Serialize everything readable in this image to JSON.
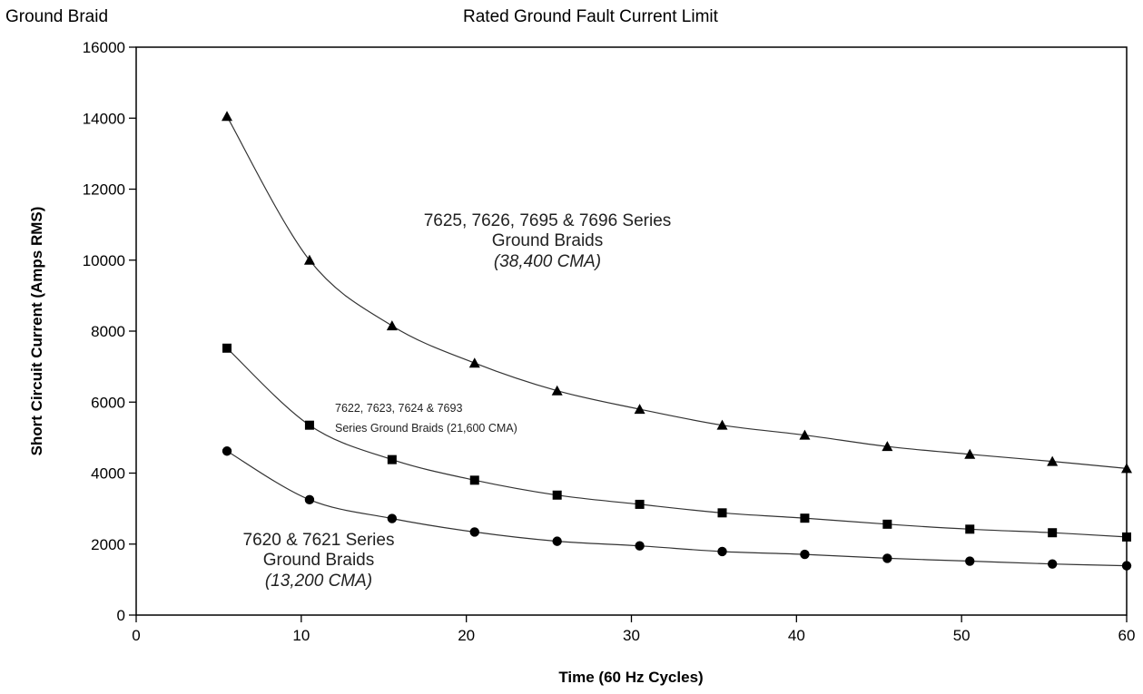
{
  "header": {
    "left": "Ground Braid",
    "center": "Rated Ground Fault Current Limit"
  },
  "chart_data": {
    "type": "line",
    "title": "Rated Ground Fault Current Limit",
    "xlabel": "Time (60 Hz Cycles)",
    "ylabel": "Short Circuit Current (Amps RMS)",
    "xlim": [
      0,
      60
    ],
    "ylim": [
      0,
      16000
    ],
    "xticks": [
      0,
      10,
      20,
      30,
      40,
      50,
      60
    ],
    "yticks": [
      0,
      2000,
      4000,
      6000,
      8000,
      10000,
      12000,
      14000,
      16000
    ],
    "grid": false,
    "x": [
      5.5,
      10.5,
      15.5,
      20.5,
      25.5,
      30.5,
      35.5,
      40.5,
      45.5,
      50.5,
      55.5,
      60
    ],
    "series": [
      {
        "marker": "triangle",
        "values": [
          14050,
          10000,
          8150,
          7100,
          6320,
          5800,
          5350,
          5070,
          4750,
          4530,
          4330,
          4130
        ]
      },
      {
        "marker": "square",
        "values": [
          7520,
          5350,
          4380,
          3800,
          3380,
          3120,
          2880,
          2730,
          2560,
          2420,
          2320,
          2200
        ]
      },
      {
        "marker": "circle",
        "values": [
          4620,
          3250,
          2720,
          2340,
          2080,
          1950,
          1790,
          1710,
          1600,
          1520,
          1440,
          1390
        ]
      }
    ],
    "annotations": [
      {
        "lines": [
          "7625, 7626, 7695 & 7696 Series",
          "Ground Braids"
        ],
        "italic_line": "(38,400 CMA)"
      },
      {
        "lines": [
          "7622, 7623, 7624 & 7693",
          "Series Ground Braids (21,600 CMA)"
        ]
      },
      {
        "lines": [
          "7620 & 7621 Series",
          "Ground Braids"
        ],
        "italic_line": "(13,200 CMA)"
      }
    ]
  }
}
